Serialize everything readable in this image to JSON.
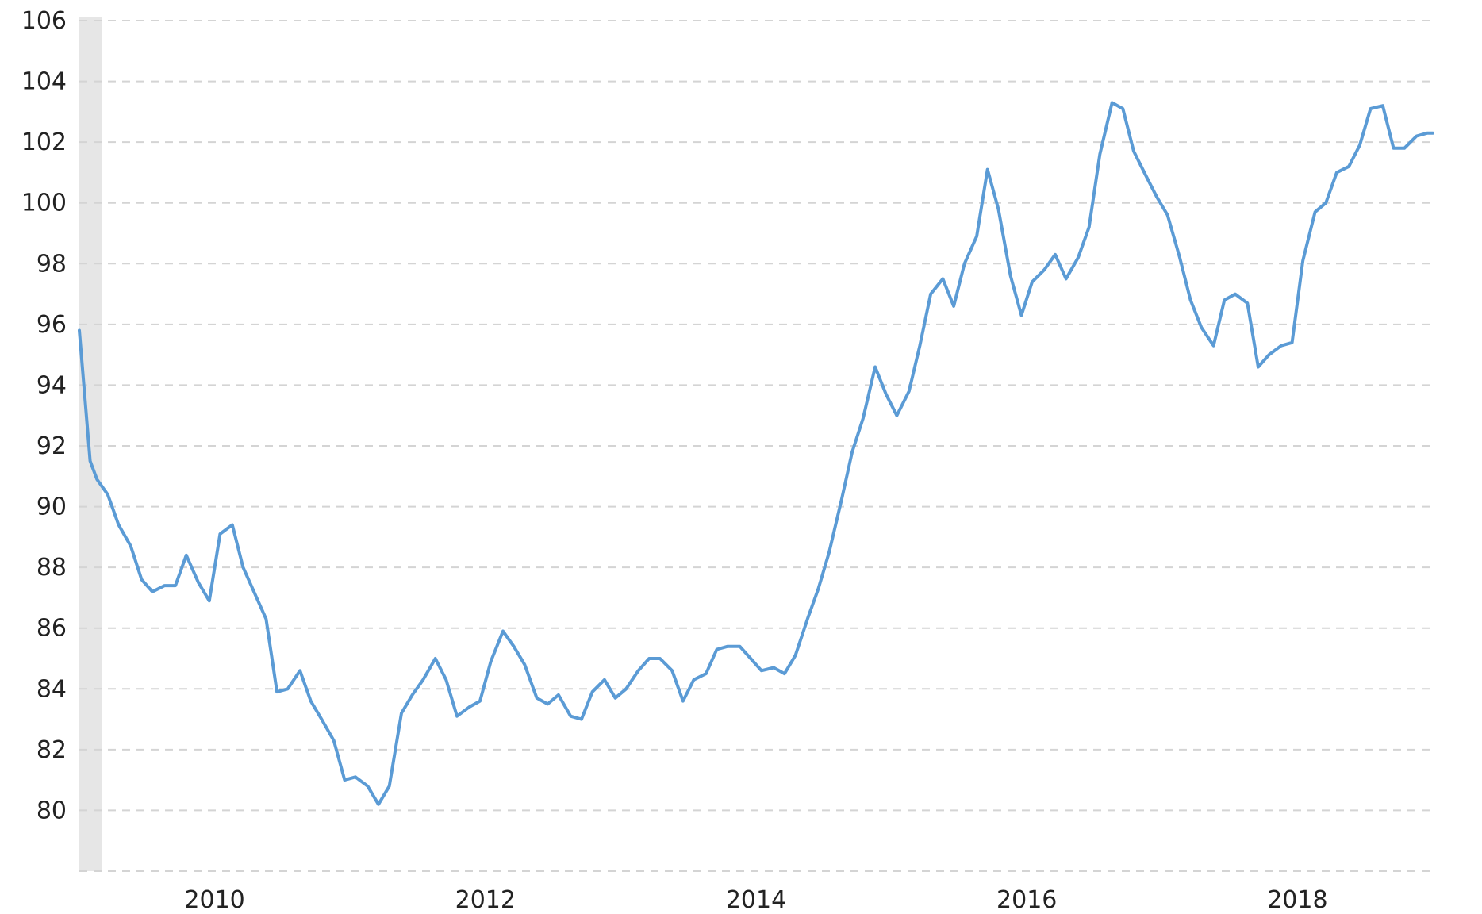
{
  "colors": {
    "line": "#5b9bd5",
    "grid": "#d4d4d4",
    "recession_band": "#e6e6e6",
    "axis_bar": "#e3e3e3",
    "text": "#222222"
  },
  "chart_data": {
    "type": "line",
    "title": "",
    "xlabel": "",
    "ylabel": "",
    "xlim": [
      2009.0,
      2019.0
    ],
    "ylim": [
      78,
      106
    ],
    "yticks": [
      80,
      82,
      84,
      86,
      88,
      90,
      92,
      94,
      96,
      98,
      100,
      102,
      104,
      106
    ],
    "xticks": [
      2010,
      2012,
      2014,
      2016,
      2018
    ],
    "grid": true,
    "legend": "none",
    "recession_band": [
      2009.0,
      2009.17
    ],
    "series": [
      {
        "x": [
          2009.0,
          2009.08,
          2009.13,
          2009.21,
          2009.29,
          2009.38,
          2009.46,
          2009.54,
          2009.63,
          2009.71,
          2009.79,
          2009.88,
          2009.96,
          2010.04,
          2010.13,
          2010.21,
          2010.29,
          2010.38,
          2010.46,
          2010.54,
          2010.63,
          2010.71,
          2010.79,
          2010.88,
          2010.96,
          2011.04,
          2011.13,
          2011.21,
          2011.29,
          2011.38,
          2011.46,
          2011.54,
          2011.63,
          2011.71,
          2011.79,
          2011.88,
          2011.96,
          2012.04,
          2012.13,
          2012.21,
          2012.29,
          2012.38,
          2012.46,
          2012.54,
          2012.63,
          2012.71,
          2012.79,
          2012.88,
          2012.96,
          2013.04,
          2013.13,
          2013.21,
          2013.29,
          2013.38,
          2013.46,
          2013.54,
          2013.63,
          2013.71,
          2013.79,
          2013.88,
          2013.96,
          2014.04,
          2014.13,
          2014.21,
          2014.29,
          2014.38,
          2014.46,
          2014.54,
          2014.63,
          2014.71,
          2014.79,
          2014.88,
          2014.96,
          2015.04,
          2015.13,
          2015.21,
          2015.29,
          2015.38,
          2015.46,
          2015.54,
          2015.63,
          2015.71,
          2015.79,
          2015.88,
          2015.96,
          2016.04,
          2016.13,
          2016.21,
          2016.29,
          2016.38,
          2016.46,
          2016.54,
          2016.63,
          2016.71,
          2016.79,
          2016.88,
          2016.96,
          2017.04,
          2017.13,
          2017.21,
          2017.29,
          2017.38,
          2017.46,
          2017.54,
          2017.63,
          2017.71,
          2017.79,
          2017.88,
          2017.96,
          2018.04,
          2018.13,
          2018.21,
          2018.29,
          2018.38,
          2018.46,
          2018.54,
          2018.63,
          2018.71,
          2018.79,
          2018.88,
          2018.96,
          2019.0
        ],
        "y": [
          95.8,
          91.5,
          90.9,
          90.4,
          89.4,
          88.7,
          87.6,
          87.2,
          87.4,
          87.4,
          88.4,
          87.5,
          86.9,
          89.1,
          89.4,
          88.0,
          87.2,
          86.3,
          83.9,
          84.0,
          84.6,
          83.6,
          83.0,
          82.3,
          81.0,
          81.1,
          80.8,
          80.2,
          80.8,
          83.2,
          83.8,
          84.3,
          85.0,
          84.3,
          83.1,
          83.4,
          83.6,
          84.9,
          85.9,
          85.4,
          84.8,
          83.7,
          83.5,
          83.8,
          83.1,
          83.0,
          83.9,
          84.3,
          83.7,
          84.0,
          84.6,
          85.0,
          85.0,
          84.6,
          83.6,
          84.3,
          84.5,
          85.3,
          85.4,
          85.4,
          85.0,
          84.6,
          84.7,
          84.5,
          85.1,
          86.3,
          87.3,
          88.5,
          90.2,
          91.8,
          92.9,
          94.6,
          93.7,
          93.0,
          93.8,
          95.3,
          97.0,
          97.5,
          96.6,
          98.0,
          98.9,
          101.1,
          99.8,
          97.6,
          96.3,
          97.4,
          97.8,
          98.3,
          97.5,
          98.2,
          99.2,
          101.6,
          103.3,
          103.1,
          101.7,
          100.9,
          100.2,
          99.6,
          98.2,
          96.8,
          95.9,
          95.3,
          96.8,
          97.0,
          96.7,
          94.6,
          95.0,
          95.3,
          95.4,
          98.1,
          99.7,
          100.0,
          101.0,
          101.2,
          101.9,
          103.1,
          103.2,
          101.8,
          101.8,
          102.2,
          102.3,
          102.3
        ]
      }
    ]
  }
}
